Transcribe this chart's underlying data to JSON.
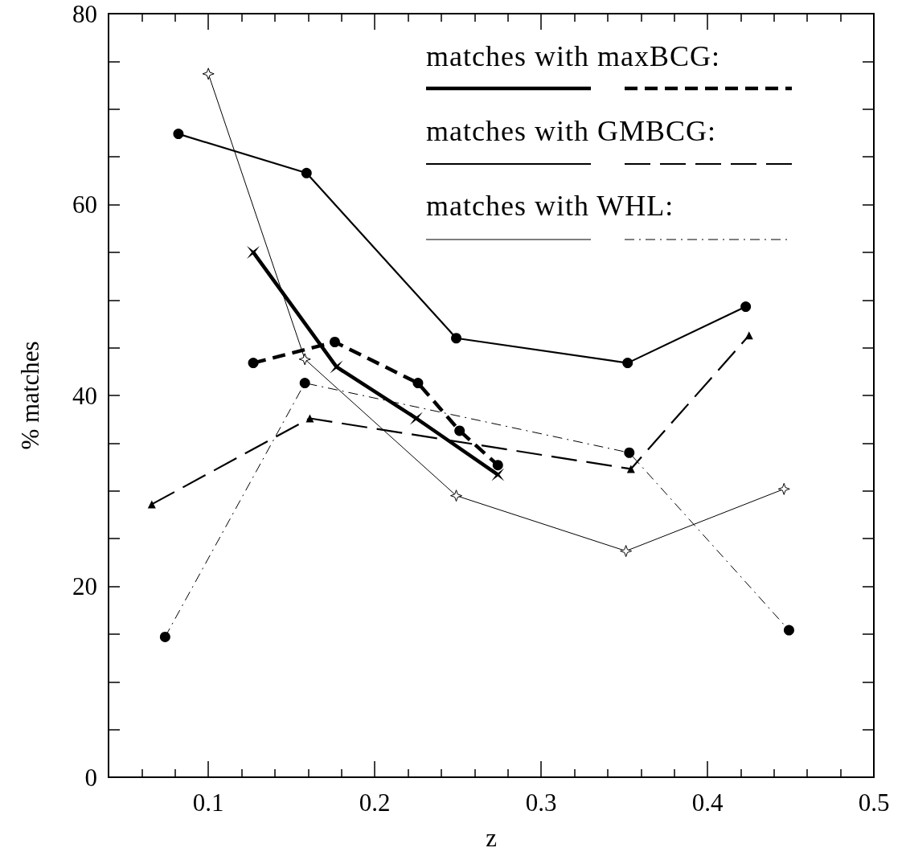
{
  "chart_data": {
    "type": "line",
    "xlabel": "z",
    "ylabel": "% matches",
    "xlim": [
      0.04,
      0.5
    ],
    "ylim": [
      0,
      80
    ],
    "xticks": [
      {
        "value": 0.06,
        "label": null
      },
      {
        "value": 0.08,
        "label": null
      },
      0.1,
      {
        "value": 0.12,
        "label": null
      },
      {
        "value": 0.14,
        "label": null
      },
      {
        "value": 0.16,
        "label": null
      },
      {
        "value": 0.18,
        "label": null
      },
      0.2,
      {
        "value": 0.22,
        "label": null
      },
      {
        "value": 0.24,
        "label": null
      },
      {
        "value": 0.26,
        "label": null
      },
      {
        "value": 0.28,
        "label": null
      },
      0.3,
      {
        "value": 0.32,
        "label": null
      },
      {
        "value": 0.34,
        "label": null
      },
      {
        "value": 0.36,
        "label": null
      },
      {
        "value": 0.38,
        "label": null
      },
      0.4,
      {
        "value": 0.42,
        "label": null
      },
      {
        "value": 0.44,
        "label": null
      },
      {
        "value": 0.46,
        "label": null
      },
      {
        "value": 0.48,
        "label": null
      },
      0.5
    ],
    "yticks": [
      0,
      {
        "value": 5,
        "label": null
      },
      {
        "value": 10,
        "label": null
      },
      {
        "value": 15,
        "label": null
      },
      20,
      {
        "value": 25,
        "label": null
      },
      {
        "value": 30,
        "label": null
      },
      {
        "value": 35,
        "label": null
      },
      40,
      {
        "value": 45,
        "label": null
      },
      {
        "value": 50,
        "label": null
      },
      {
        "value": 55,
        "label": null
      },
      60,
      {
        "value": 65,
        "label": null
      },
      {
        "value": 70,
        "label": null
      },
      {
        "value": 75,
        "label": null
      },
      80
    ],
    "grid": false,
    "annotations": [
      "matches with maxBCG:",
      "matches with GMBCG:",
      "matches with WHL:"
    ],
    "series": [
      {
        "color": "#000000",
        "line_style": "solid",
        "marker": "cross",
        "x": [
          0.127,
          0.177,
          0.225,
          0.274
        ],
        "values": [
          55.0,
          43.0,
          37.6,
          31.7
        ]
      },
      {
        "color": "#000000",
        "line_style": "dashed",
        "marker": "circle",
        "x": [
          0.127,
          0.176,
          0.226,
          0.251,
          0.274
        ],
        "values": [
          43.4,
          45.6,
          41.3,
          36.3,
          32.7
        ]
      },
      {
        "color": "#000000",
        "line_style": "solid",
        "marker": "circle",
        "x": [
          0.082,
          0.159,
          0.249,
          0.352,
          0.423
        ],
        "values": [
          67.4,
          63.3,
          46.0,
          43.4,
          49.3
        ]
      },
      {
        "color": "#000000",
        "line_style": "longdash",
        "marker": "triangle",
        "x": [
          0.066,
          0.161,
          0.354,
          0.425
        ],
        "values": [
          28.6,
          37.6,
          32.3,
          46.3
        ]
      },
      {
        "color": "#000000",
        "line_style": "solid",
        "marker": "star",
        "x": [
          0.1,
          0.158,
          0.249,
          0.351,
          0.446
        ],
        "values": [
          73.7,
          43.8,
          29.5,
          23.7,
          30.2
        ]
      },
      {
        "color": "#000000",
        "line_style": "dashdot",
        "marker": "circle",
        "x": [
          0.074,
          0.158,
          0.353,
          0.449
        ],
        "values": [
          14.7,
          41.3,
          34.0,
          15.4
        ]
      }
    ]
  }
}
